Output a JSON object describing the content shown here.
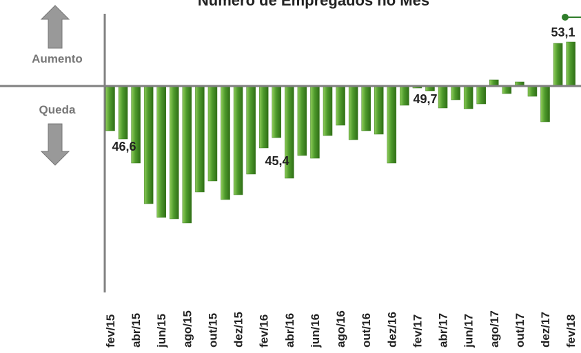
{
  "chart_data": {
    "type": "bar",
    "title": "Número de Empregados no Mês",
    "categories": [
      "fev/15",
      null,
      "abr/15",
      null,
      "jun/15",
      null,
      "ago/15",
      null,
      "out/15",
      null,
      "dez/15",
      null,
      "fev/16",
      null,
      "abr/16",
      null,
      "jun/16",
      null,
      "ago/16",
      null,
      "out/16",
      null,
      "dez/16",
      null,
      "fev/17",
      null,
      "abr/17",
      null,
      "jun/17",
      null,
      "ago/17",
      null,
      "out/17",
      null,
      "dez/17",
      null,
      "fev/18"
    ],
    "values": [
      -6.5,
      -7.7,
      -11.2,
      -17.1,
      -19.1,
      -19.3,
      -19.9,
      -15.4,
      -13.8,
      -16.5,
      -15.8,
      -12.8,
      -9,
      -7.5,
      -13.4,
      -10.1,
      -10.5,
      -7.2,
      -5.7,
      -7.8,
      -6.5,
      -7,
      -11.2,
      -2.8,
      -0.3,
      -0.7,
      -3.2,
      -2,
      -3.3,
      -2.6,
      0.9,
      -1.1,
      0.6,
      -1.5,
      -5.2,
      6.2,
      6.4
    ],
    "color": "#4e9a2c",
    "ylim": [
      -30,
      10.5
    ],
    "annotations": [
      "46,6",
      "45,4",
      "49,7",
      "53,1"
    ],
    "side_labels": [
      "Aumento",
      "Queda"
    ]
  }
}
